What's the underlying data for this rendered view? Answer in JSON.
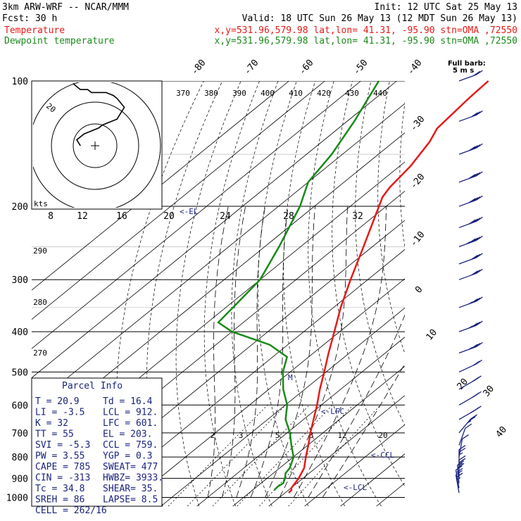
{
  "header": {
    "line1_left": "3km ARW-WRF -- NCAR/MMM",
    "line1_right": "Init: 12 UTC Sat 25 May 13",
    "line2_left": "Fcst:     30 h",
    "line2_right": "Valid: 18 UTC Sun 26 May 13 (12 MDT Sun 26 May 13)",
    "temp_label": "Temperature",
    "temp_loc": "x,y=531.96,579.98   lat,lon= 41.31, -95.90  stn=OMA ,72550",
    "dew_label": "Dewpoint temperature",
    "dew_loc": "x,y=531.96,579.98   lat,lon= 41.31, -95.90  stn=OMA ,72550"
  },
  "colors": {
    "temperature": "#e61a1a",
    "dewpoint": "#1a8a1a",
    "annotation": "#1a237e",
    "grid": "#000000"
  },
  "pressure_labels": [
    "100",
    "200",
    "300",
    "400",
    "500",
    "600",
    "700",
    "800",
    "900",
    "1000"
  ],
  "temp_isotherm_labels": [
    "-80",
    "-70",
    "-60",
    "-50",
    "-40",
    "-30",
    "-20",
    "-10",
    "0",
    "10",
    "20",
    "30",
    "40"
  ],
  "theta_labels": [
    "370",
    "380",
    "390",
    "400",
    "410",
    "420",
    "430",
    "440"
  ],
  "theta_left_labels": [
    "290",
    "280",
    "270"
  ],
  "mixing_labels": [
    "2",
    "3",
    "5",
    "8",
    "12",
    "20"
  ],
  "hodo": {
    "kts": "kts",
    "ring_labels": [
      "8",
      "12",
      "16",
      "20",
      "24",
      "28",
      "32"
    ],
    "label_20": "20"
  },
  "levels": {
    "el": "<-EL",
    "lfc": "<-LFC",
    "ccl": "<-CCL",
    "lcl": "<-LCL",
    "m": "M"
  },
  "full_barb": {
    "line1": "Full barb:",
    "line2": "5 m s"
  },
  "parcel": {
    "title": "Parcel Info",
    "rows": [
      [
        "T  =     20.9",
        "Td =  16.4"
      ],
      [
        "LI =     -3.5",
        "LCL =  912."
      ],
      [
        "K  =       32",
        "LFC =  601."
      ],
      [
        "TT =       55",
        "EL  =  203."
      ],
      [
        "SVI =    -5.3",
        "CCL =  759."
      ],
      [
        "PW =     3.55",
        "YGP =   0.3"
      ],
      [
        "CAPE =    785",
        "SWEAT=  477"
      ],
      [
        "CIN =    -313",
        "HWBZ= 3933."
      ],
      [
        "Tc =     34.8",
        "SHEAR=  35."
      ],
      [
        "SREH =     86",
        "LAPSE=  8.5"
      ],
      [
        "CELL = 262/16",
        ""
      ]
    ]
  },
  "chart_data": {
    "type": "line",
    "title": "",
    "xlabel": "",
    "ylabel": "",
    "y_axis_pressure_hPa": [
      100,
      200,
      300,
      400,
      500,
      600,
      700,
      800,
      900,
      1000
    ],
    "series": [
      {
        "name": "Temperature",
        "pressure_hPa": [
          975,
          960,
          950,
          900,
          850,
          800,
          750,
          700,
          650,
          600,
          550,
          500,
          450,
          400,
          350,
          300,
          250,
          200,
          190,
          180,
          160,
          140,
          130,
          110,
          100
        ],
        "temp_C": [
          21.0,
          20.8,
          20.1,
          18.8,
          16.8,
          13.5,
          10.2,
          6.5,
          2.8,
          -1.2,
          -5.8,
          -10.5,
          -15.8,
          -21.5,
          -28.0,
          -34.8,
          -42.5,
          -52.0,
          -54.2,
          -55.5,
          -57.0,
          -60.0,
          -62.5,
          -64.0,
          -64.5
        ]
      },
      {
        "name": "Dewpoint temperature",
        "pressure_hPa": [
          960,
          940,
          925,
          900,
          875,
          850,
          800,
          750,
          700,
          650,
          600,
          550,
          500,
          460,
          430,
          400,
          380,
          350,
          300,
          250,
          200,
          175,
          150,
          125,
          100
        ],
        "temp_C": [
          16.0,
          15.8,
          16.2,
          15.0,
          13.4,
          12.8,
          10.1,
          5.5,
          0.8,
          -5.0,
          -9.5,
          -16.0,
          -22.0,
          -26.0,
          -35.0,
          -50.0,
          -57.0,
          -58.0,
          -60.0,
          -66.0,
          -74.0,
          -80.0,
          -83.0,
          -88.0,
          -95.0
        ]
      }
    ],
    "hodograph_ms": {
      "u": [
        -4,
        -5,
        -3,
        1,
        2,
        4,
        6,
        7,
        8,
        6,
        5,
        3,
        -1,
        -2,
        -4,
        -6
      ],
      "v": [
        0,
        2,
        4,
        6,
        7,
        8,
        9,
        11,
        13,
        16,
        17,
        18,
        18,
        19,
        19,
        21
      ]
    },
    "winds": [
      {
        "p": 100,
        "spd_kt": 20,
        "dir": 250
      },
      {
        "p": 125,
        "spd_kt": 30,
        "dir": 250
      },
      {
        "p": 150,
        "spd_kt": 40,
        "dir": 250
      },
      {
        "p": 175,
        "spd_kt": 40,
        "dir": 250
      },
      {
        "p": 200,
        "spd_kt": 40,
        "dir": 250
      },
      {
        "p": 225,
        "spd_kt": 40,
        "dir": 250
      },
      {
        "p": 250,
        "spd_kt": 35,
        "dir": 250
      },
      {
        "p": 275,
        "spd_kt": 30,
        "dir": 250
      },
      {
        "p": 300,
        "spd_kt": 30,
        "dir": 250
      },
      {
        "p": 350,
        "spd_kt": 25,
        "dir": 250
      },
      {
        "p": 400,
        "spd_kt": 25,
        "dir": 250
      },
      {
        "p": 450,
        "spd_kt": 25,
        "dir": 250
      },
      {
        "p": 500,
        "spd_kt": 20,
        "dir": 245
      },
      {
        "p": 550,
        "spd_kt": 20,
        "dir": 240
      },
      {
        "p": 600,
        "spd_kt": 20,
        "dir": 240
      },
      {
        "p": 650,
        "spd_kt": 15,
        "dir": 240
      },
      {
        "p": 700,
        "spd_kt": 15,
        "dir": 220
      },
      {
        "p": 750,
        "spd_kt": 10,
        "dir": 200
      },
      {
        "p": 800,
        "spd_kt": 10,
        "dir": 190
      },
      {
        "p": 850,
        "spd_kt": 15,
        "dir": 180
      },
      {
        "p": 900,
        "spd_kt": 15,
        "dir": 180
      },
      {
        "p": 925,
        "spd_kt": 20,
        "dir": 175
      },
      {
        "p": 950,
        "spd_kt": 20,
        "dir": 170
      },
      {
        "p": 975,
        "spd_kt": 15,
        "dir": 170
      }
    ]
  }
}
